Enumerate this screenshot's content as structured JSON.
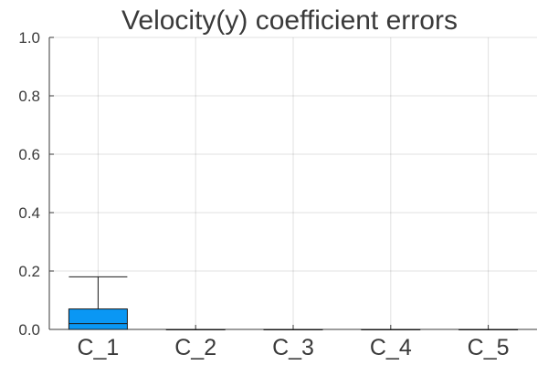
{
  "chart_data": {
    "type": "box",
    "title": "Velocity(y) coefficient errors",
    "xlabel": "",
    "ylabel": "",
    "ylim": [
      0,
      1
    ],
    "yticks": [
      0.0,
      0.2,
      0.4,
      0.6,
      0.8,
      1.0
    ],
    "ytick_labels": [
      "0.0",
      "0.2",
      "0.4",
      "0.6",
      "0.8",
      "1.0"
    ],
    "categories": [
      "C_1",
      "C_2",
      "C_3",
      "C_4",
      "C_5"
    ],
    "grid": true,
    "legend": "none",
    "series": [
      {
        "name": "coefficient errors",
        "boxes": [
          {
            "category": "C_1",
            "min": 0.0,
            "q1": 0.0,
            "median": 0.02,
            "q3": 0.07,
            "max": 0.18
          },
          {
            "category": "C_2",
            "min": 0.0,
            "q1": 0.0,
            "median": 0.0,
            "q3": 0.0,
            "max": 0.0
          },
          {
            "category": "C_3",
            "min": 0.0,
            "q1": 0.0,
            "median": 0.0,
            "q3": 0.0,
            "max": 0.0
          },
          {
            "category": "C_4",
            "min": 0.0,
            "q1": 0.0,
            "median": 0.0,
            "q3": 0.0,
            "max": 0.0
          },
          {
            "category": "C_5",
            "min": 0.0,
            "q1": 0.0,
            "median": 0.0,
            "q3": 0.0,
            "max": 0.0
          }
        ]
      }
    ],
    "colors": {
      "box_fill": "#0a97f4",
      "outline": "#1a1a1a",
      "text": "#3a3a3a"
    }
  }
}
